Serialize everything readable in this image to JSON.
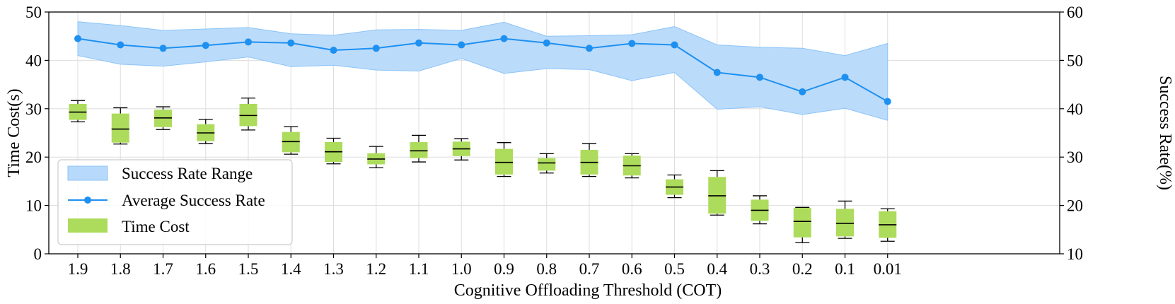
{
  "chart_data": {
    "type": "box+line",
    "xlabel": "Cognitive Offloading Threshold (COT)",
    "ylabel_left": "Time Cost(s)",
    "ylabel_right": "Success Rate(%)",
    "ylim_left": [
      0,
      50
    ],
    "ylim_right": [
      10,
      60
    ],
    "yticks_left": [
      0,
      10,
      20,
      30,
      40,
      50
    ],
    "yticks_right": [
      10,
      20,
      30,
      40,
      50,
      60
    ],
    "grid": true,
    "legend_placement": "lower-left",
    "categories": [
      "1.9",
      "1.8",
      "1.7",
      "1.6",
      "1.5",
      "1.4",
      "1.3",
      "1.2",
      "1.1",
      "1.0",
      "0.9",
      "0.8",
      "0.7",
      "0.6",
      "0.5",
      "0.4",
      "0.3",
      "0.2",
      "0.1",
      "0.01"
    ],
    "legend": [
      "Success Rate Range",
      "Average Success Rate",
      "Time Cost"
    ],
    "success_rate": {
      "name": "Average Success Rate",
      "mean": [
        54.5,
        53.2,
        52.5,
        53.1,
        53.8,
        53.6,
        52.1,
        52.5,
        53.6,
        53.2,
        54.5,
        53.6,
        52.5,
        53.5,
        53.2,
        47.5,
        46.5,
        43.5,
        46.5,
        41.5
      ],
      "upper": [
        58.0,
        57.2,
        56.2,
        56.5,
        56.8,
        55.5,
        55.2,
        56.3,
        56.4,
        56.2,
        57.9,
        55.0,
        55.1,
        55.3,
        57.0,
        53.2,
        52.7,
        52.5,
        51.0,
        53.5
      ],
      "lower": [
        51.0,
        49.2,
        48.8,
        49.7,
        50.7,
        48.7,
        49.0,
        48.0,
        47.8,
        50.4,
        47.3,
        48.3,
        48.1,
        45.8,
        47.5,
        39.9,
        40.4,
        38.8,
        40.1,
        37.6
      ]
    },
    "time_cost": {
      "name": "Time Cost",
      "whisker_low": [
        27.3,
        22.7,
        25.7,
        22.8,
        25.6,
        20.6,
        18.6,
        17.8,
        19.0,
        19.4,
        16.0,
        16.7,
        16.0,
        15.7,
        11.6,
        8.0,
        6.2,
        2.3,
        3.2,
        2.6
      ],
      "q1": [
        27.7,
        23.0,
        26.2,
        23.3,
        26.4,
        21.0,
        19.0,
        18.5,
        19.8,
        20.2,
        16.4,
        17.2,
        16.4,
        16.2,
        12.2,
        8.3,
        6.8,
        3.4,
        3.6,
        3.3
      ],
      "median": [
        29.3,
        25.8,
        28.1,
        25.0,
        28.6,
        23.2,
        21.1,
        19.6,
        21.3,
        21.7,
        18.9,
        18.8,
        18.9,
        18.2,
        13.8,
        12.0,
        9.0,
        6.7,
        6.3,
        6.0
      ],
      "q3": [
        31.0,
        29.0,
        29.8,
        26.8,
        31.0,
        25.2,
        23.1,
        20.8,
        23.1,
        23.2,
        21.7,
        19.8,
        21.5,
        20.3,
        15.4,
        15.9,
        11.2,
        9.5,
        9.3,
        8.8
      ],
      "whisker_high": [
        31.7,
        30.2,
        30.4,
        27.8,
        32.2,
        26.3,
        23.9,
        22.2,
        24.5,
        23.8,
        23.0,
        20.7,
        22.8,
        20.7,
        16.3,
        17.2,
        12.0,
        9.6,
        10.9,
        9.3
      ]
    },
    "colors": {
      "range_fill": "#b7d9fb",
      "range_edge": "#8cc4f7",
      "line": "#1e90f0",
      "box_fill": "#addb5c",
      "median": "#000000",
      "grid": "#dddddd"
    }
  }
}
